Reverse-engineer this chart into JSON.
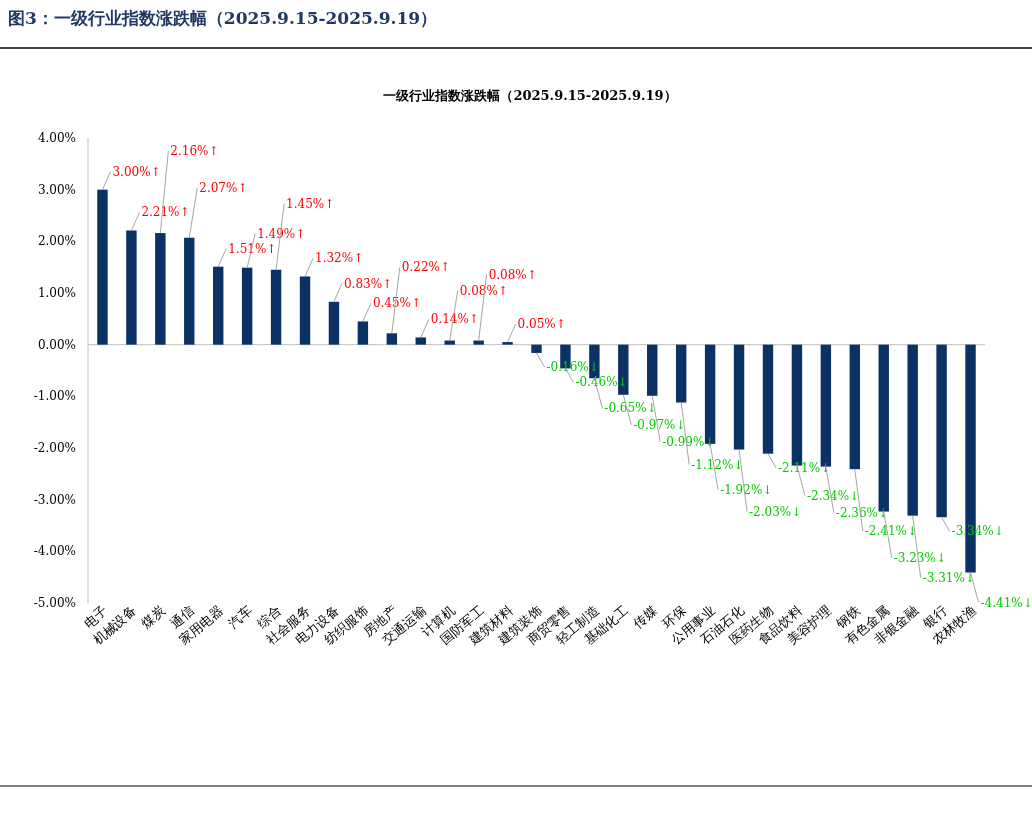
{
  "chart_data": {
    "type": "bar",
    "title": "图3：一级行业指数涨跌幅（2025.9.15-2025.9.19）",
    "subtitle": "一级行业指数涨跌幅（2025.9.15-2025.9.19）",
    "categories": [
      "电子",
      "机械设备",
      "煤炭",
      "通信",
      "家用电器",
      "汽车",
      "综合",
      "社会服务",
      "电力设备",
      "纺织服饰",
      "房地产",
      "交通运输",
      "计算机",
      "国防军工",
      "建筑材料",
      "建筑装饰",
      "商贸零售",
      "轻工制造",
      "基础化工",
      "传媒",
      "环保",
      "公用事业",
      "石油石化",
      "医药生物",
      "食品饮料",
      "美容护理",
      "钢铁",
      "有色金属",
      "非银金融",
      "银行",
      "农林牧渔"
    ],
    "values": [
      3.0,
      2.21,
      2.16,
      2.07,
      1.51,
      1.49,
      1.45,
      1.32,
      0.83,
      0.45,
      0.22,
      0.14,
      0.08,
      0.08,
      0.05,
      -0.16,
      -0.46,
      -0.65,
      -0.97,
      -0.99,
      -1.12,
      -1.92,
      -2.03,
      -2.11,
      -2.34,
      -2.36,
      -2.41,
      -3.23,
      -3.31,
      -3.34,
      -4.41
    ],
    "value_labels": [
      "3.00%↑",
      "2.21%↑",
      "2.16%↑",
      "2.07%↑",
      "1.51%↑",
      "1.49%↑",
      "1.45%↑",
      "1.32%↑",
      "0.83%↑",
      "0.45%↑",
      "0.22%↑",
      "0.14%↑",
      "0.08%↑",
      "0.08%↑",
      "0.05%↑",
      "-0.16%↓",
      "-0.46%↓",
      "-0.65%↓",
      "-0.97%↓",
      "-0.99%↓",
      "-1.12%↓",
      "-1.92%↓",
      "-2.03%↓",
      "-2.11%↓",
      "-2.34%↓",
      "-2.36%↓",
      "-2.41%↓",
      "-3.23%↓",
      "-3.31%↓",
      "-3.34%↓",
      "-4.41%↓"
    ],
    "color": "#0b3165",
    "ylim": [
      -5,
      4
    ],
    "yticks": [
      {
        "value": -5,
        "label": "-5.00%"
      },
      {
        "value": -4,
        "label": "-4.00%"
      },
      {
        "value": -3,
        "label": "-3.00%"
      },
      {
        "value": -2,
        "label": "-2.00%"
      },
      {
        "value": -1,
        "label": "-1.00%"
      },
      {
        "value": 0,
        "label": "0.00%"
      },
      {
        "value": 1,
        "label": "1.00%"
      },
      {
        "value": 2,
        "label": "2.00%"
      },
      {
        "value": 3,
        "label": "3.00%"
      },
      {
        "value": 4,
        "label": "4.00%"
      }
    ]
  }
}
